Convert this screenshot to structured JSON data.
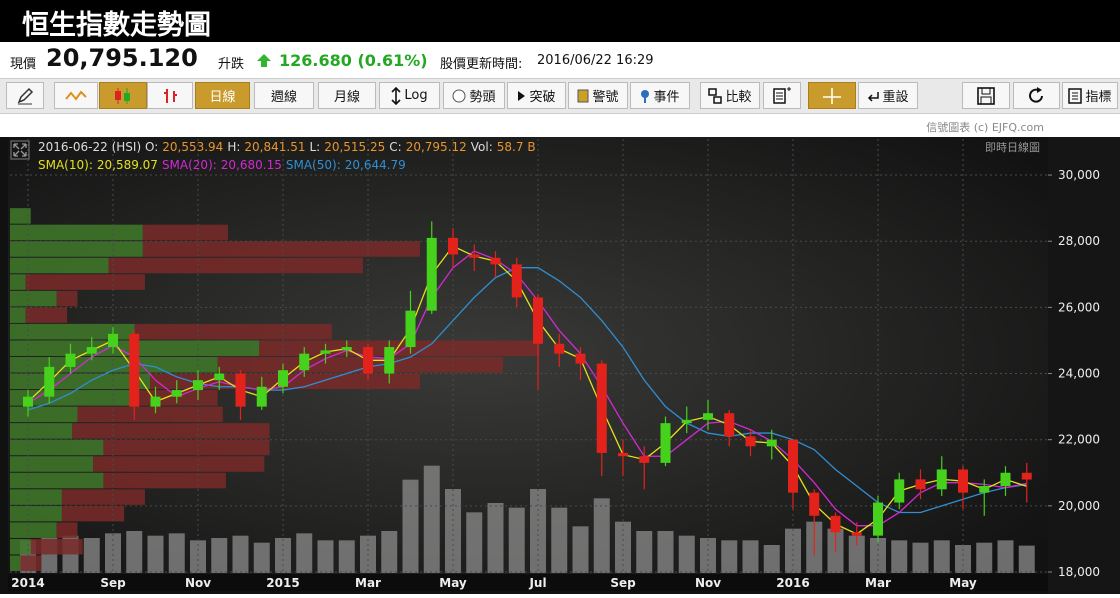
{
  "header": {
    "title": "恒生指數走勢圖"
  },
  "quote": {
    "price_label": "現價",
    "price": "20,795.120",
    "change_label": "升跌",
    "change": "126.680 (0.61%)",
    "update_label": "股價更新時間:",
    "update_time": "2016/06/22 16:29"
  },
  "toolbar": {
    "buttons": [
      "日線",
      "週線",
      "月線",
      "Log",
      "勢頭",
      "突破",
      "警號",
      "事件",
      "比較",
      "重設",
      "指標"
    ]
  },
  "credit": "信號圖表 (c) EJFQ.com",
  "chart_data": {
    "type": "candlestick",
    "chart_label": "即時日線圖",
    "info": {
      "date": "2016-06-22",
      "symbol": "(HSI)",
      "items": [
        {
          "label": "O:",
          "value": "20,553.94"
        },
        {
          "label": "H:",
          "value": "20,841.51"
        },
        {
          "label": "L:",
          "value": "20,515.25"
        },
        {
          "label": "C:",
          "value": "20,795.12"
        },
        {
          "label": "Vol:",
          "value": "58.7 B"
        }
      ]
    },
    "categories": [
      "2014",
      null,
      null,
      null,
      "Sep",
      null,
      null,
      null,
      "Nov",
      null,
      null,
      null,
      "2015",
      null,
      null,
      null,
      "Mar",
      null,
      null,
      null,
      "May",
      null,
      null,
      null,
      "Jul",
      null,
      null,
      null,
      "Sep",
      null,
      null,
      null,
      "Nov",
      null,
      null,
      null,
      "2016",
      null,
      null,
      null,
      "Mar",
      null,
      null,
      null,
      "May",
      null,
      null,
      null
    ],
    "open": [
      23000,
      23300,
      24200,
      24600,
      24800,
      25200,
      23000,
      23300,
      23500,
      23800,
      24000,
      23000,
      23600,
      24100,
      24600,
      24700,
      24800,
      24000,
      24800,
      25900,
      28100,
      27600,
      27500,
      27300,
      26300,
      24900,
      24600,
      24300,
      21600,
      21500,
      21300,
      22500,
      22600,
      22800,
      22100,
      21800,
      22000,
      20400,
      19700,
      19200,
      19100,
      20100,
      20800,
      20500,
      21100,
      20400,
      20600,
      21000
    ],
    "high": [
      23500,
      24500,
      24900,
      25100,
      25400,
      25300,
      23600,
      23800,
      24100,
      24200,
      24100,
      23900,
      24300,
      24800,
      24900,
      25000,
      24900,
      25000,
      26500,
      28600,
      28400,
      27900,
      27700,
      27500,
      26400,
      25200,
      24800,
      24400,
      22000,
      21800,
      22700,
      23000,
      23200,
      22900,
      22300,
      22300,
      22000,
      20500,
      19800,
      19500,
      20300,
      21000,
      21100,
      21500,
      21200,
      20800,
      21200,
      21300
    ],
    "low": [
      22700,
      23100,
      24000,
      24400,
      24600,
      22600,
      22800,
      23100,
      23200,
      23500,
      22600,
      22900,
      23400,
      23900,
      24300,
      24500,
      23800,
      23700,
      24600,
      25800,
      27200,
      27100,
      26900,
      26000,
      23500,
      24200,
      23800,
      20900,
      20900,
      20500,
      21200,
      22200,
      22300,
      21800,
      21500,
      21400,
      19900,
      18500,
      18600,
      18800,
      18900,
      19900,
      20200,
      20300,
      19900,
      19700,
      20300,
      20100
    ],
    "close": [
      23300,
      24200,
      24600,
      24800,
      25200,
      23000,
      23300,
      23500,
      23800,
      24000,
      23000,
      23600,
      24100,
      24600,
      24700,
      24800,
      24000,
      24800,
      25900,
      28100,
      27600,
      27500,
      27300,
      26300,
      24900,
      24600,
      24300,
      21600,
      21500,
      21300,
      22500,
      22600,
      22800,
      22100,
      21800,
      22000,
      20400,
      19700,
      19200,
      19100,
      20100,
      20800,
      20500,
      21100,
      20400,
      20600,
      21000,
      20795
    ],
    "up_color": "#46d21c",
    "down_color": "#e3231b",
    "overlays": [
      {
        "name": "SMA(10):",
        "legend_value": "20,589.07",
        "color": "#e6e01a",
        "values": [
          23150,
          23750,
          24400,
          24700,
          25000,
          24100,
          23150,
          23400,
          23650,
          23900,
          23500,
          23300,
          23850,
          24350,
          24650,
          24750,
          24400,
          24400,
          25350,
          27000,
          27850,
          27550,
          27400,
          26800,
          25600,
          24750,
          24450,
          22950,
          21550,
          21400,
          21900,
          22550,
          22700,
          22450,
          21950,
          21900,
          21200,
          20050,
          19450,
          19150,
          19600,
          20450,
          20650,
          20800,
          20750,
          20500,
          20800,
          20589.07
        ]
      },
      {
        "name": "SMA(20):",
        "legend_value": "20,680.15",
        "color": "#d22ad2",
        "values": [
          23100,
          23500,
          24000,
          24500,
          24850,
          24500,
          23800,
          23300,
          23550,
          23750,
          23600,
          23500,
          23600,
          24100,
          24450,
          24700,
          24500,
          24450,
          24900,
          26300,
          27200,
          27700,
          27450,
          27000,
          26200,
          25300,
          24600,
          23600,
          22500,
          21500,
          21500,
          22000,
          22500,
          22550,
          22300,
          21950,
          21400,
          20700,
          19900,
          19400,
          19400,
          19800,
          20400,
          20700,
          20700,
          20650,
          20550,
          20680.15
        ]
      },
      {
        "name": "SMA(50):",
        "legend_value": "20,644.79",
        "color": "#2f8fd2",
        "values": [
          22900,
          23100,
          23400,
          23800,
          24100,
          24300,
          24200,
          23900,
          23700,
          23600,
          23600,
          23500,
          23500,
          23600,
          23800,
          24000,
          24200,
          24300,
          24500,
          24900,
          25600,
          26300,
          26900,
          27200,
          27200,
          26800,
          26300,
          25600,
          24800,
          23800,
          23000,
          22500,
          22200,
          22100,
          22200,
          22200,
          22000,
          21700,
          21100,
          20600,
          20100,
          19800,
          19800,
          20000,
          20200,
          20400,
          20550,
          20644.79
        ]
      }
    ],
    "volume": {
      "color": "#8c8c8c",
      "vlim": [
        0,
        300
      ],
      "values": [
        70,
        75,
        80,
        75,
        85,
        90,
        80,
        85,
        70,
        75,
        80,
        65,
        75,
        85,
        70,
        70,
        80,
        90,
        200,
        230,
        180,
        130,
        150,
        140,
        180,
        140,
        100,
        160,
        110,
        90,
        90,
        80,
        75,
        70,
        70,
        60,
        95,
        110,
        95,
        80,
        75,
        70,
        65,
        70,
        60,
        65,
        70,
        58.7
      ]
    },
    "profile": {
      "up_color": "#3f7a2a",
      "down_color": "#7a2a28",
      "xlim": [
        0,
        1000
      ],
      "bins": [
        18000,
        18500,
        19000,
        19500,
        20000,
        20500,
        21000,
        21500,
        22000,
        22500,
        23000,
        23500,
        24000,
        24500,
        25000,
        25500,
        26000,
        26500,
        27000,
        27500,
        28000,
        28500,
        29000
      ],
      "up": [
        10,
        20,
        45,
        50,
        50,
        90,
        80,
        90,
        60,
        65,
        120,
        135,
        200,
        240,
        120,
        15,
        45,
        15,
        95,
        128,
        128,
        20
      ],
      "down": [
        20,
        50,
        20,
        60,
        80,
        118,
        165,
        160,
        190,
        140,
        80,
        260,
        275,
        270,
        190,
        40,
        20,
        115,
        245,
        267,
        82,
        0
      ]
    },
    "ylim": [
      17970,
      31090
    ],
    "yticks": [
      {
        "value": 18000,
        "label": "18,000"
      },
      {
        "value": 20000,
        "label": "20,000"
      },
      {
        "value": 22000,
        "label": "22,000"
      },
      {
        "value": 24000,
        "label": "24,000"
      },
      {
        "value": 26000,
        "label": "26,000"
      },
      {
        "value": 28000,
        "label": "28,000"
      },
      {
        "value": 30000,
        "label": "30,000"
      }
    ],
    "grid": true
  }
}
